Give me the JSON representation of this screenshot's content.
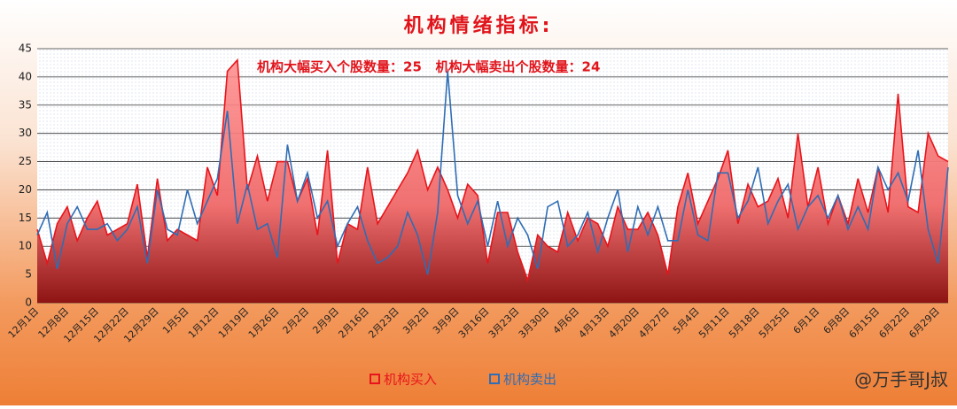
{
  "chart_data": {
    "type": "line",
    "title": "机构情绪指标:",
    "annotation": "机构大幅买入个股数量：25   机构大幅卖出个股数量：24",
    "watermark": "@万手哥J叔",
    "categories": [
      "12月1日",
      null,
      null,
      "12月8日",
      null,
      null,
      "12月15日",
      null,
      null,
      "12月22日",
      null,
      null,
      "12月29日",
      null,
      null,
      "1月5日",
      null,
      null,
      "1月12日",
      null,
      null,
      "1月19日",
      null,
      null,
      "1月26日",
      null,
      null,
      "2月2日",
      null,
      null,
      "2月9日",
      null,
      null,
      "2月16日",
      null,
      null,
      "2月23日",
      null,
      null,
      "3月2日",
      null,
      null,
      "3月9日",
      null,
      null,
      "3月16日",
      null,
      null,
      "3月23日",
      null,
      null,
      "3月30日",
      null,
      null,
      "4月6日",
      null,
      null,
      "4月13日",
      null,
      null,
      "4月20日",
      null,
      null,
      "4月27日",
      null,
      null,
      "5月4日",
      null,
      null,
      "5月11日",
      null,
      null,
      "5月18日",
      null,
      null,
      "5月25日",
      null,
      null,
      "6月1日",
      null,
      null,
      "6月8日",
      null,
      null,
      "6月15日",
      null,
      null,
      "6月22日",
      null,
      null,
      "6月29日",
      null
    ],
    "series": [
      {
        "name": "机构买入",
        "color": "#e8141b",
        "area": true,
        "values": [
          13,
          7,
          14,
          17,
          11,
          15,
          18,
          12,
          13,
          14,
          21,
          8,
          22,
          11,
          13,
          12,
          11,
          24,
          19,
          41,
          43,
          20,
          26,
          18,
          25,
          25,
          18,
          22,
          12,
          27,
          7,
          14,
          13,
          24,
          14,
          17,
          20,
          23,
          27,
          20,
          24,
          20,
          15,
          21,
          19,
          7,
          16,
          16,
          9,
          4,
          12,
          10,
          9,
          16,
          11,
          15,
          14,
          10,
          17,
          13,
          13,
          16,
          12,
          5,
          17,
          23,
          14,
          18,
          22,
          27,
          14,
          21,
          17,
          18,
          22,
          15,
          30,
          17,
          24,
          14,
          19,
          14,
          22,
          16,
          24,
          16,
          37,
          17,
          16,
          30,
          26,
          25
        ]
      },
      {
        "name": "机构卖出",
        "color": "#2f6db5",
        "area": false,
        "values": [
          12,
          16,
          6,
          14,
          17,
          13,
          13,
          14,
          11,
          13,
          17,
          7,
          20,
          13,
          12,
          20,
          14,
          18,
          22,
          34,
          14,
          21,
          13,
          14,
          8,
          28,
          18,
          23,
          15,
          18,
          10,
          14,
          17,
          11,
          7,
          8,
          10,
          16,
          12,
          5,
          16,
          41,
          19,
          14,
          18,
          10,
          18,
          10,
          15,
          12,
          6,
          17,
          18,
          10,
          12,
          16,
          9,
          15,
          20,
          9,
          17,
          12,
          17,
          11,
          11,
          20,
          12,
          11,
          23,
          23,
          15,
          18,
          24,
          14,
          18,
          21,
          13,
          17,
          19,
          15,
          19,
          13,
          17,
          13,
          24,
          20,
          23,
          18,
          27,
          13,
          7,
          24
        ]
      }
    ],
    "ylim": [
      0,
      45
    ],
    "yticks": [
      0,
      5,
      10,
      15,
      20,
      25,
      30,
      35,
      40,
      45
    ],
    "grid": true,
    "legend": "bottom"
  }
}
